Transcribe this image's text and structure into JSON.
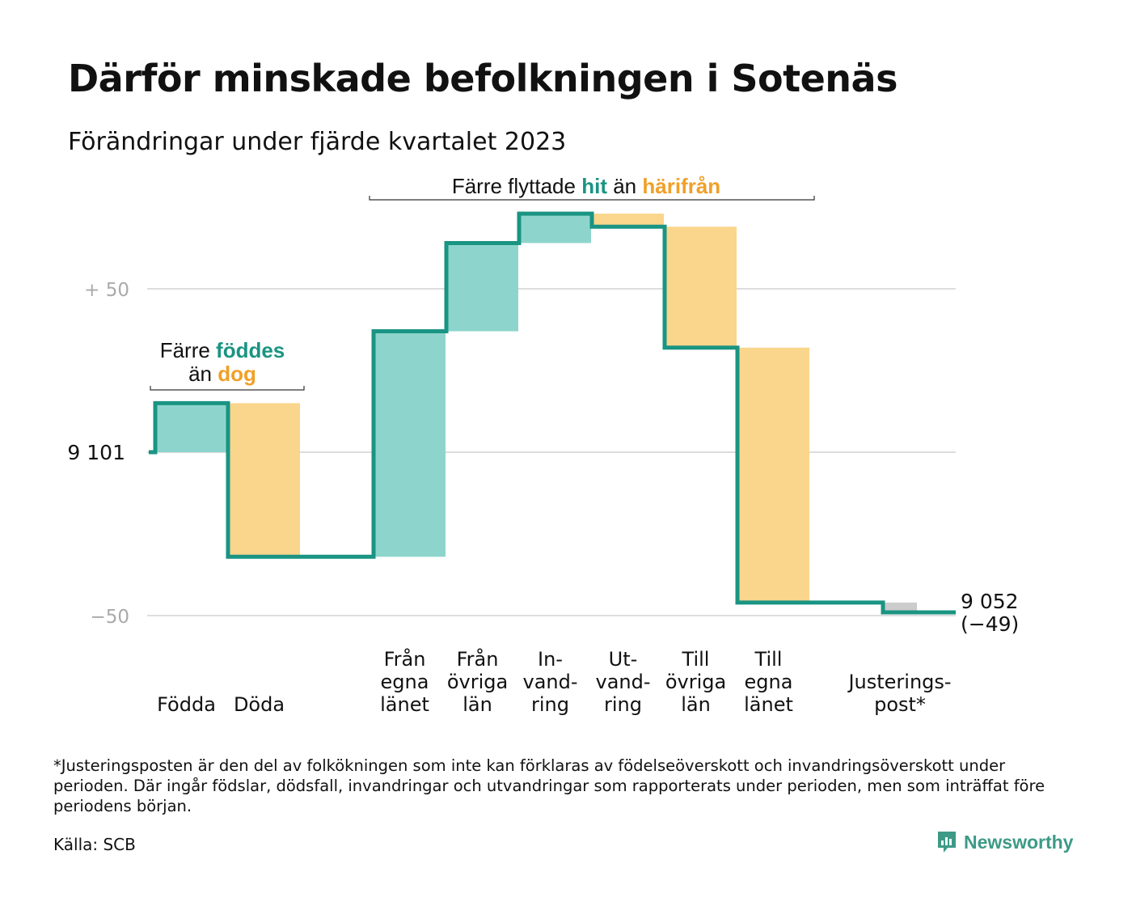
{
  "header": {
    "title": "Därför minskade befolkningen i Sotenäs",
    "subtitle": "Förändringar under fjärde kvartalet 2023"
  },
  "chart_data": {
    "type": "waterfall",
    "start_value": 9101,
    "start_label": "9  101",
    "end_value": 9052,
    "end_label": "9 052",
    "end_change_label": "(−49)",
    "y_ticks": [
      {
        "value": 50,
        "label": "+  50"
      },
      {
        "value": 0,
        "label": ""
      },
      {
        "value": -50,
        "label": "−50"
      }
    ],
    "ylim": [
      -60,
      75
    ],
    "grid": true,
    "steps": [
      {
        "name": "Födda",
        "label_lines": [
          "Födda"
        ],
        "delta": 15,
        "kind": "positive",
        "group": "natural"
      },
      {
        "name": "Döda",
        "label_lines": [
          "Döda"
        ],
        "delta": -47,
        "kind": "negative",
        "group": "natural"
      },
      {
        "name": "Från egna länet",
        "label_lines": [
          "Från",
          "egna",
          "länet"
        ],
        "delta": 69,
        "kind": "positive",
        "group": "migration"
      },
      {
        "name": "Från övriga län",
        "label_lines": [
          "Från",
          "övriga",
          "län"
        ],
        "delta": 27,
        "kind": "positive",
        "group": "migration"
      },
      {
        "name": "Invandring",
        "label_lines": [
          "In-",
          "vand-",
          "ring"
        ],
        "delta": 9,
        "kind": "positive",
        "group": "migration"
      },
      {
        "name": "Utvandring",
        "label_lines": [
          "Ut-",
          "vand-",
          "ring"
        ],
        "delta": -4,
        "kind": "negative",
        "group": "migration"
      },
      {
        "name": "Till övriga län",
        "label_lines": [
          "Till",
          "övriga",
          "län"
        ],
        "delta": -37,
        "kind": "negative",
        "group": "migration"
      },
      {
        "name": "Till egna länet",
        "label_lines": [
          "Till",
          "egna",
          "länet"
        ],
        "delta": -78,
        "kind": "negative",
        "group": "migration"
      },
      {
        "name": "Justeringspost*",
        "label_lines": [
          "Justerings-",
          "post*"
        ],
        "delta": -3,
        "kind": "adjustment",
        "group": "adjustment"
      }
    ],
    "annotations": {
      "natural": {
        "line1_parts": [
          "Färre ",
          "föddes"
        ],
        "line2_parts": [
          "än ",
          "dog"
        ]
      },
      "migration": {
        "parts": [
          "Färre flyttade ",
          "hit",
          " än ",
          "härifrån"
        ]
      }
    },
    "colors": {
      "line": "#1a9483",
      "positive": "#8dd5cc",
      "negative": "#fad58c",
      "adjustment": "#cccccc",
      "accent_positive": "#1a9483",
      "accent_negative": "#f0a028",
      "grid": "#dddddd",
      "tick_label": "#aaaaaa"
    }
  },
  "footer": {
    "footnote": "*Justeringsposten är den del av folkökningen som inte kan förklaras av födelseöverskott och invandringsöverskott under perioden. Där ingår födslar, dödsfall, invandringar och utvandringar som rapporterats under perioden, men som inträffat före periodens början.",
    "source": "Källa: SCB",
    "brand": "Newsworthy",
    "brand_icon": "newsworthy-logo-icon"
  }
}
